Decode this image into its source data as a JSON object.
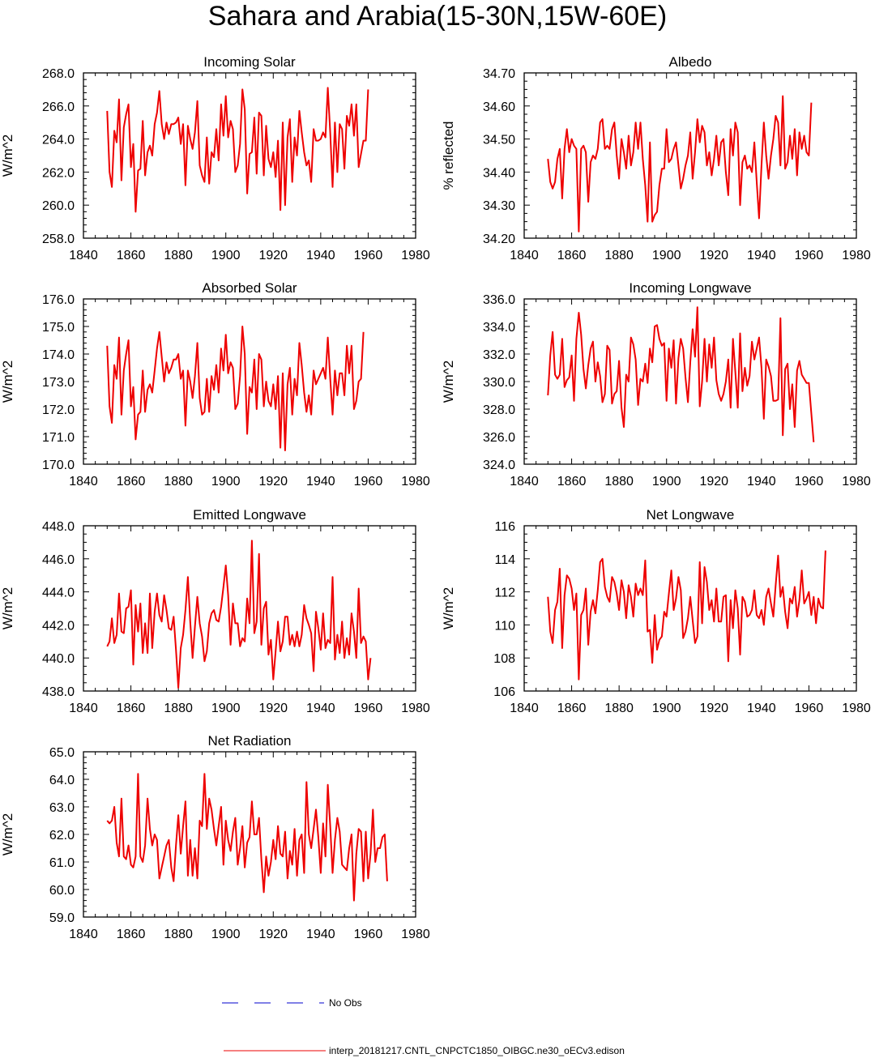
{
  "title": "Sahara and Arabia(15-30N,15W-60E)",
  "colors": {
    "model": "#ee0000",
    "obs": "#0000cc",
    "axis": "#000000"
  },
  "legend": {
    "obs_label": "No Obs",
    "model_label": "interp_20181217.CNTL_CNPCTC1850_OIBGC.ne30_oECv3.edison"
  },
  "chart_data": [
    {
      "type": "line",
      "title": "Incoming Solar",
      "ylabel": "W/m^2",
      "xlim": [
        1840,
        1980
      ],
      "ylim": [
        258,
        268
      ],
      "xticks": [
        "1840",
        "1860",
        "1880",
        "1900",
        "1920",
        "1940",
        "1960",
        "1980"
      ],
      "yticks": [
        "258.0",
        "260.0",
        "262.0",
        "264.0",
        "266.0",
        "268.0"
      ],
      "series": [
        {
          "x_start": 1850,
          "values": [
            265.7,
            262.0,
            261.1,
            264.5,
            263.8,
            266.4,
            261.5,
            264.7,
            265.5,
            266.1,
            262.3,
            263.7,
            259.6,
            262.1,
            262.2,
            265.1,
            261.8,
            263.2,
            263.6,
            263.0,
            264.9,
            265.6,
            266.9,
            264.9,
            264.0,
            265.0,
            264.3,
            264.9,
            264.9,
            265.0,
            265.3,
            263.7,
            264.9,
            261.2,
            264.8,
            264.0,
            263.4,
            264.4,
            266.3,
            262.4,
            261.8,
            261.4,
            264.1,
            261.3,
            263.2,
            262.9,
            264.6,
            262.7,
            266.1,
            264.2,
            266.6,
            264.1,
            265.1,
            264.6,
            262.0,
            262.4,
            263.7,
            267.0,
            265.8,
            260.7,
            263.1,
            263.2,
            265.3,
            261.9,
            265.6,
            265.4,
            261.8,
            264.8,
            262.8,
            262.3,
            263.2,
            261.7,
            263.9,
            259.7,
            265.0,
            260.0,
            264.1,
            265.2,
            261.4,
            264.1,
            263.0,
            265.7,
            264.4,
            263.2,
            262.4,
            262.7,
            261.4,
            264.6,
            263.9,
            263.9,
            264.0,
            264.4,
            264.1,
            267.1,
            264.4,
            261.1,
            265.0,
            262.0,
            264.9,
            264.6,
            262.2,
            265.4,
            264.8,
            266.1,
            264.2,
            266.1,
            262.3,
            263.1,
            263.9,
            263.9,
            267.0
          ]
        }
      ]
    },
    {
      "type": "line",
      "title": "Albedo",
      "ylabel": "% reflected",
      "xlim": [
        1840,
        1980
      ],
      "ylim": [
        34.2,
        34.7
      ],
      "xticks": [
        "1840",
        "1860",
        "1880",
        "1900",
        "1920",
        "1940",
        "1960",
        "1980"
      ],
      "yticks": [
        "34.20",
        "34.30",
        "34.40",
        "34.50",
        "34.60",
        "34.70"
      ],
      "series": [
        {
          "x_start": 1850,
          "values": [
            34.44,
            34.37,
            34.35,
            34.37,
            34.44,
            34.47,
            34.32,
            34.47,
            34.53,
            34.46,
            34.5,
            34.48,
            34.47,
            34.22,
            34.47,
            34.48,
            34.46,
            34.31,
            34.43,
            34.45,
            34.44,
            34.47,
            34.55,
            34.56,
            34.47,
            34.48,
            34.47,
            34.53,
            34.55,
            34.45,
            34.38,
            34.5,
            34.46,
            34.41,
            34.51,
            34.42,
            34.46,
            34.55,
            34.47,
            34.55,
            34.44,
            34.36,
            34.25,
            34.49,
            34.25,
            34.27,
            34.28,
            34.36,
            34.41,
            34.41,
            34.53,
            34.43,
            34.44,
            34.47,
            34.49,
            34.42,
            34.35,
            34.38,
            34.42,
            34.45,
            34.52,
            34.38,
            34.46,
            34.56,
            34.49,
            34.54,
            34.52,
            34.42,
            34.46,
            34.39,
            34.44,
            34.51,
            34.42,
            34.49,
            34.5,
            34.4,
            34.33,
            34.53,
            34.45,
            34.55,
            34.52,
            34.3,
            34.43,
            34.45,
            34.41,
            34.42,
            34.4,
            34.49,
            34.37,
            34.26,
            34.42,
            34.55,
            34.45,
            34.38,
            34.45,
            34.5,
            34.57,
            34.55,
            34.42,
            34.63,
            34.41,
            34.43,
            34.51,
            34.44,
            34.53,
            34.39,
            34.52,
            34.47,
            34.51,
            34.46,
            34.45,
            34.61
          ]
        }
      ]
    },
    {
      "type": "line",
      "title": "Absorbed Solar",
      "ylabel": "W/m^2",
      "xlim": [
        1840,
        1980
      ],
      "ylim": [
        170,
        176
      ],
      "xticks": [
        "1840",
        "1860",
        "1880",
        "1900",
        "1920",
        "1940",
        "1960",
        "1980"
      ],
      "yticks": [
        "170.0",
        "171.0",
        "172.0",
        "173.0",
        "174.0",
        "175.0",
        "176.0"
      ],
      "series": [
        {
          "x_start": 1850,
          "values": [
            174.3,
            172.1,
            171.5,
            173.6,
            173.1,
            174.6,
            171.8,
            173.4,
            174.0,
            174.5,
            172.1,
            172.8,
            170.9,
            171.8,
            171.9,
            173.4,
            171.9,
            172.7,
            172.9,
            172.6,
            173.4,
            174.2,
            174.8,
            173.9,
            173.0,
            173.7,
            173.3,
            173.5,
            173.8,
            173.8,
            174.0,
            173.1,
            173.4,
            171.4,
            173.4,
            173.0,
            172.4,
            173.2,
            174.4,
            172.4,
            171.8,
            171.9,
            173.1,
            171.9,
            173.2,
            172.7,
            173.6,
            172.6,
            174.2,
            173.4,
            174.7,
            173.3,
            173.7,
            173.5,
            172.0,
            172.2,
            173.2,
            175.0,
            174.0,
            171.1,
            172.8,
            172.6,
            173.8,
            172.0,
            174.0,
            173.8,
            172.1,
            173.0,
            172.3,
            172.1,
            172.9,
            172.0,
            173.2,
            170.6,
            173.3,
            170.5,
            172.9,
            173.5,
            171.8,
            173.1,
            172.5,
            174.4,
            173.6,
            172.6,
            171.9,
            172.5,
            171.8,
            173.4,
            172.9,
            173.1,
            173.3,
            173.5,
            173.1,
            174.6,
            173.1,
            171.8,
            173.4,
            172.5,
            173.3,
            173.3,
            172.5,
            174.3,
            173.3,
            174.3,
            172.0,
            172.3,
            173.0,
            173.1,
            174.8
          ]
        }
      ]
    },
    {
      "type": "line",
      "title": "Incoming Longwave",
      "ylabel": "W/m^2",
      "xlim": [
        1840,
        1980
      ],
      "ylim": [
        324,
        336
      ],
      "xticks": [
        "1840",
        "1860",
        "1880",
        "1900",
        "1920",
        "1940",
        "1960",
        "1980"
      ],
      "yticks": [
        "324.0",
        "326.0",
        "328.0",
        "330.0",
        "332.0",
        "334.0",
        "336.0"
      ],
      "series": [
        {
          "x_start": 1850,
          "values": [
            329.0,
            331.9,
            333.6,
            330.5,
            330.2,
            330.5,
            333.1,
            329.6,
            330.1,
            330.3,
            331.9,
            328.6,
            333.1,
            335.0,
            333.4,
            330.9,
            329.5,
            331.2,
            332.4,
            332.9,
            330.0,
            331.4,
            330.4,
            328.5,
            329.1,
            332.6,
            332.3,
            328.4,
            329.1,
            329.3,
            331.5,
            328.1,
            326.7,
            330.5,
            330.0,
            333.2,
            332.7,
            331.6,
            328.3,
            330.2,
            330.0,
            331.3,
            329.9,
            332.4,
            331.4,
            334.0,
            334.1,
            333.1,
            332.6,
            332.8,
            328.6,
            332.4,
            331.0,
            333.0,
            328.4,
            331.7,
            333.1,
            332.4,
            330.3,
            328.5,
            331.4,
            333.8,
            331.8,
            335.4,
            328.2,
            330.0,
            333.1,
            330.0,
            332.7,
            331.0,
            333.2,
            330.1,
            329.1,
            328.6,
            329.1,
            330.0,
            331.6,
            328.1,
            333.1,
            330.7,
            328.1,
            333.5,
            329.3,
            331.0,
            329.7,
            330.4,
            332.9,
            331.6,
            332.4,
            333.2,
            331.0,
            327.3,
            331.6,
            331.1,
            330.4,
            328.6,
            328.6,
            328.7,
            334.6,
            326.1,
            330.9,
            331.3,
            328.0,
            329.8,
            326.7,
            330.8,
            331.5,
            330.5,
            330.2,
            329.9,
            329.9,
            327.7,
            325.6
          ]
        }
      ]
    },
    {
      "type": "line",
      "title": "Emitted Longwave",
      "ylabel": "W/m^2",
      "xlim": [
        1840,
        1980
      ],
      "ylim": [
        438,
        448
      ],
      "xticks": [
        "1840",
        "1860",
        "1880",
        "1900",
        "1920",
        "1940",
        "1960",
        "1980"
      ],
      "yticks": [
        "438.0",
        "440.0",
        "442.0",
        "444.0",
        "446.0",
        "448.0"
      ],
      "series": [
        {
          "x_start": 1850,
          "values": [
            440.7,
            441.0,
            442.4,
            440.9,
            441.4,
            443.9,
            441.6,
            441.5,
            443.0,
            443.1,
            444.1,
            439.6,
            443.2,
            441.6,
            443.3,
            440.3,
            442.1,
            440.3,
            443.9,
            440.6,
            442.8,
            443.9,
            442.6,
            442.2,
            443.8,
            442.9,
            441.8,
            441.7,
            442.5,
            440.5,
            438.2,
            440.6,
            441.4,
            442.9,
            444.9,
            442.2,
            440.0,
            441.9,
            443.7,
            442.1,
            441.3,
            439.8,
            440.4,
            442.1,
            442.7,
            442.9,
            442.3,
            442.2,
            443.1,
            444.3,
            445.6,
            443.8,
            440.8,
            443.3,
            442.1,
            442.1,
            440.7,
            441.2,
            441.0,
            443.6,
            442.1,
            447.1,
            441.5,
            442.2,
            446.3,
            440.8,
            443.0,
            443.4,
            440.2,
            441.1,
            438.7,
            440.4,
            442.2,
            440.4,
            441.0,
            442.5,
            442.5,
            440.8,
            441.4,
            440.7,
            441.6,
            440.7,
            441.4,
            443.2,
            442.4,
            442.0,
            441.5,
            439.2,
            442.8,
            441.8,
            440.5,
            442.7,
            440.6,
            441.1,
            440.9,
            444.9,
            439.9,
            441.4,
            440.3,
            442.2,
            440.0,
            441.2,
            440.2,
            442.7,
            441.6,
            440.0,
            444.2,
            440.9,
            441.3,
            441.0,
            438.7,
            440.0
          ]
        }
      ]
    },
    {
      "type": "line",
      "title": "Net Longwave",
      "ylabel": "W/m^2",
      "xlim": [
        1840,
        1980
      ],
      "ylim": [
        106,
        116
      ],
      "xticks": [
        "1840",
        "1860",
        "1880",
        "1900",
        "1920",
        "1940",
        "1960",
        "1980"
      ],
      "yticks": [
        "106",
        "108",
        "110",
        "112",
        "114",
        "116"
      ],
      "series": [
        {
          "x_start": 1850,
          "values": [
            111.7,
            109.6,
            108.9,
            110.9,
            111.4,
            113.4,
            108.6,
            111.8,
            113.0,
            112.8,
            112.2,
            110.9,
            111.9,
            106.7,
            110.6,
            110.9,
            112.2,
            108.8,
            110.8,
            111.5,
            110.7,
            112.1,
            113.8,
            114.0,
            112.3,
            111.7,
            111.4,
            112.9,
            112.6,
            111.9,
            110.9,
            112.7,
            112.0,
            110.4,
            112.4,
            111.7,
            110.5,
            112.5,
            111.8,
            112.2,
            111.8,
            113.9,
            109.6,
            109.7,
            107.7,
            110.6,
            108.5,
            109.1,
            109.3,
            110.8,
            110.5,
            111.9,
            113.3,
            110.9,
            111.6,
            112.9,
            112.1,
            109.2,
            109.6,
            110.4,
            111.7,
            110.3,
            108.9,
            109.3,
            113.8,
            110.1,
            113.5,
            112.6,
            110.9,
            111.5,
            110.2,
            112.2,
            110.2,
            110.2,
            111.7,
            111.8,
            107.8,
            111.5,
            109.8,
            112.1,
            111.0,
            108.2,
            111.7,
            111.4,
            110.5,
            110.6,
            110.9,
            112.1,
            110.6,
            110.4,
            110.9,
            110.0,
            111.7,
            112.2,
            111.3,
            110.5,
            112.4,
            114.2,
            111.7,
            112.3,
            110.8,
            109.8,
            111.6,
            111.3,
            112.3,
            110.5,
            111.5,
            113.3,
            111.3,
            111.6,
            112.0,
            110.6,
            111.7,
            110.1,
            111.6,
            111.1,
            111.0,
            114.5
          ]
        }
      ]
    },
    {
      "type": "line",
      "title": "Net Radiation",
      "ylabel": "W/m^2",
      "xlim": [
        1840,
        1980
      ],
      "ylim": [
        59,
        65
      ],
      "xticks": [
        "1840",
        "1860",
        "1880",
        "1900",
        "1920",
        "1940",
        "1960",
        "1980"
      ],
      "yticks": [
        "59.0",
        "60.0",
        "61.0",
        "62.0",
        "63.0",
        "64.0",
        "65.0"
      ],
      "series": [
        {
          "x_start": 1850,
          "values": [
            62.5,
            62.4,
            62.5,
            63.0,
            61.7,
            61.2,
            63.3,
            61.2,
            61.1,
            61.6,
            60.9,
            60.8,
            61.2,
            64.2,
            61.2,
            61.0,
            61.6,
            63.3,
            62.2,
            61.6,
            62.0,
            61.8,
            60.4,
            60.8,
            61.2,
            61.6,
            61.8,
            60.8,
            60.3,
            61.6,
            62.7,
            61.3,
            62.3,
            63.2,
            60.5,
            61.8,
            60.5,
            61.5,
            60.4,
            62.5,
            62.3,
            64.2,
            62.2,
            63.3,
            62.9,
            62.2,
            61.6,
            62.3,
            63.0,
            60.9,
            62.5,
            61.8,
            61.4,
            62.1,
            62.6,
            60.9,
            61.5,
            62.3,
            60.8,
            61.7,
            61.9,
            63.2,
            62.0,
            62.0,
            62.6,
            61.1,
            59.9,
            61.2,
            60.5,
            61.0,
            61.8,
            61.1,
            62.3,
            61.3,
            61.2,
            62.1,
            60.4,
            61.4,
            60.9,
            62.2,
            60.5,
            61.8,
            62.0,
            60.6,
            63.9,
            62.0,
            61.5,
            62.2,
            62.9,
            61.9,
            60.6,
            62.4,
            61.2,
            63.8,
            62.3,
            60.6,
            61.8,
            62.6,
            62.1,
            60.9,
            60.8,
            60.7,
            61.5,
            62.0,
            59.6,
            61.3,
            62.2,
            62.1,
            60.3,
            62.1,
            60.4,
            61.3,
            62.9,
            61.0,
            61.5,
            61.5,
            61.9,
            62.0,
            60.3
          ]
        }
      ]
    }
  ]
}
